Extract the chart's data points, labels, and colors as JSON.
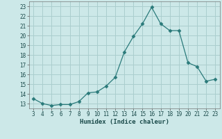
{
  "x": [
    3,
    4,
    5,
    6,
    7,
    8,
    9,
    10,
    11,
    12,
    13,
    14,
    15,
    16,
    17,
    18,
    19,
    20,
    21,
    22,
    23
  ],
  "y": [
    13.5,
    13.0,
    12.8,
    12.9,
    12.9,
    13.2,
    14.1,
    14.2,
    14.8,
    15.7,
    18.3,
    19.9,
    21.2,
    22.9,
    21.2,
    20.5,
    20.5,
    17.2,
    16.8,
    15.3,
    15.5
  ],
  "line_color": "#2a7a7a",
  "marker": "D",
  "marker_size": 2.5,
  "bg_color": "#cce8e8",
  "grid_color": "#aacece",
  "xlabel": "Humidex (Indice chaleur)",
  "xlim": [
    2.5,
    23.5
  ],
  "ylim": [
    12.5,
    23.5
  ],
  "xticks": [
    3,
    4,
    5,
    6,
    7,
    8,
    9,
    10,
    11,
    12,
    13,
    14,
    15,
    16,
    17,
    18,
    19,
    20,
    21,
    22,
    23
  ],
  "yticks": [
    13,
    14,
    15,
    16,
    17,
    18,
    19,
    20,
    21,
    22,
    23
  ],
  "tick_fontsize": 5.5,
  "xlabel_fontsize": 6.5
}
